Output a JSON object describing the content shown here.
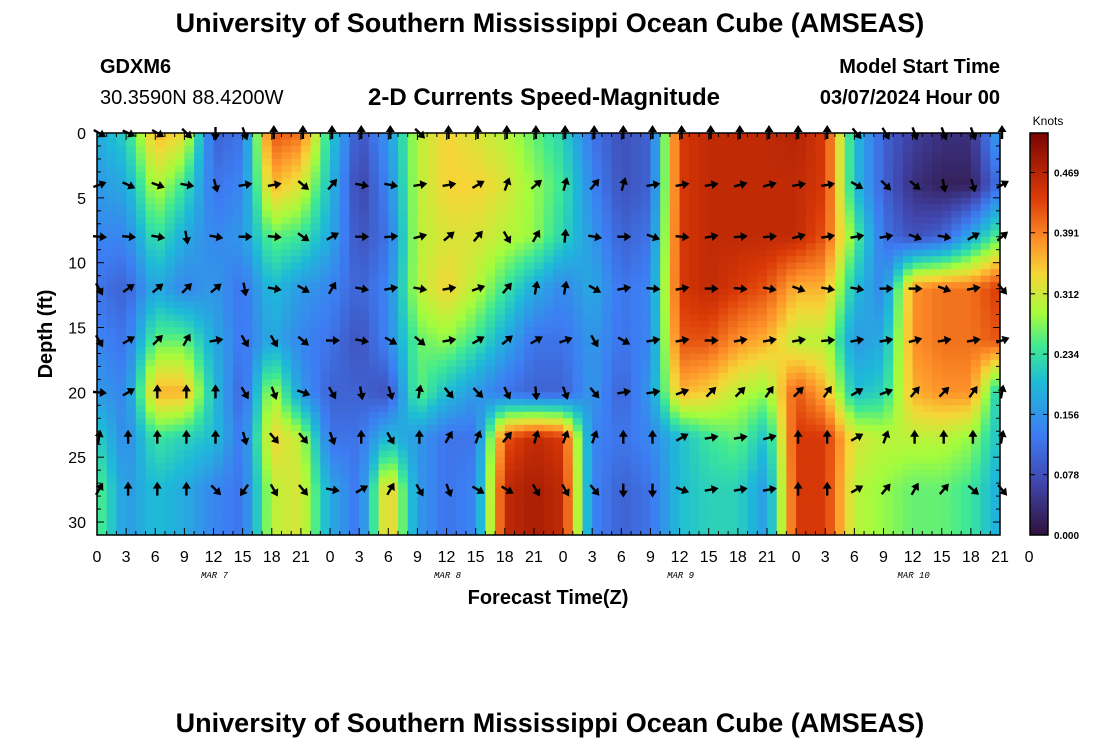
{
  "header": {
    "title": "University of Southern Mississippi Ocean Cube (AMSEAS)",
    "station": "GDXM6",
    "coords": "30.3590N  88.4200W",
    "subtitle": "2-D Currents Speed-Magnitude",
    "model_start_label": "Model Start Time",
    "model_start_value": "03/07/2024 Hour 00"
  },
  "footer": {
    "title": "University of Southern Mississippi Ocean Cube (AMSEAS)"
  },
  "chart_data": {
    "type": "heatmap",
    "title": "2-D Currents Speed-Magnitude",
    "xlabel": "Forecast Time(Z)",
    "ylabel": "Depth (ft)",
    "xlim": [
      0,
      93
    ],
    "ylim": [
      0,
      31
    ],
    "x_tick_labels": [
      "0",
      "3",
      "6",
      "9",
      "12",
      "15",
      "18",
      "21",
      "0",
      "3",
      "6",
      "9",
      "12",
      "15",
      "18",
      "21",
      "0",
      "3",
      "6",
      "9",
      "12",
      "15",
      "18",
      "21",
      "0",
      "3",
      "6",
      "9",
      "12",
      "15",
      "18",
      "21",
      "0"
    ],
    "y_tick_values": [
      0,
      5,
      10,
      15,
      20,
      25,
      30
    ],
    "y_tick_labels": [
      "0",
      "5",
      "10",
      "15",
      "20",
      "25",
      "30"
    ],
    "date_labels": [
      {
        "label": "MAR 7",
        "hour": 12
      },
      {
        "label": "MAR 8",
        "hour": 36
      },
      {
        "label": "MAR 9",
        "hour": 60
      },
      {
        "label": "MAR 10",
        "hour": 84
      }
    ],
    "colorbar": {
      "unit": "Knots",
      "min": 0.0,
      "max": 0.52,
      "ticks": [
        "0.000",
        "0.078",
        "0.156",
        "0.234",
        "0.312",
        "0.391",
        "0.469"
      ],
      "tick_values": [
        0.0,
        0.078,
        0.156,
        0.234,
        0.312,
        0.391,
        0.469
      ]
    },
    "depths_ft": [
      0,
      4,
      8,
      12,
      16,
      20,
      23.5,
      27.5
    ],
    "hours": [
      0,
      3,
      6,
      9,
      12,
      15,
      18,
      21,
      24,
      27,
      30,
      33,
      36,
      39,
      42,
      45,
      48,
      51,
      54,
      57,
      60,
      63,
      66,
      69,
      72,
      75,
      78,
      81,
      84,
      87,
      90,
      93
    ],
    "speed_knots": [
      [
        0.18,
        0.22,
        0.36,
        0.33,
        0.1,
        0.12,
        0.42,
        0.4,
        0.22,
        0.08,
        0.16,
        0.3,
        0.34,
        0.32,
        0.3,
        0.26,
        0.22,
        0.12,
        0.08,
        0.1,
        0.44,
        0.46,
        0.46,
        0.46,
        0.47,
        0.44,
        0.2,
        0.1,
        0.06,
        0.04,
        0.04,
        0.18
      ],
      [
        0.16,
        0.18,
        0.3,
        0.24,
        0.12,
        0.14,
        0.36,
        0.32,
        0.2,
        0.06,
        0.14,
        0.3,
        0.34,
        0.34,
        0.32,
        0.28,
        0.24,
        0.14,
        0.08,
        0.1,
        0.44,
        0.46,
        0.46,
        0.46,
        0.46,
        0.44,
        0.2,
        0.1,
        0.04,
        0.02,
        0.02,
        0.12
      ],
      [
        0.14,
        0.14,
        0.24,
        0.18,
        0.14,
        0.16,
        0.26,
        0.24,
        0.18,
        0.08,
        0.12,
        0.3,
        0.32,
        0.32,
        0.3,
        0.28,
        0.22,
        0.16,
        0.1,
        0.12,
        0.44,
        0.46,
        0.46,
        0.46,
        0.46,
        0.42,
        0.26,
        0.12,
        0.08,
        0.1,
        0.18,
        0.26
      ],
      [
        0.12,
        0.1,
        0.18,
        0.14,
        0.16,
        0.12,
        0.2,
        0.16,
        0.14,
        0.1,
        0.14,
        0.3,
        0.34,
        0.3,
        0.24,
        0.18,
        0.14,
        0.18,
        0.12,
        0.14,
        0.44,
        0.46,
        0.44,
        0.42,
        0.36,
        0.36,
        0.2,
        0.14,
        0.38,
        0.4,
        0.4,
        0.44
      ],
      [
        0.14,
        0.12,
        0.26,
        0.26,
        0.18,
        0.12,
        0.18,
        0.14,
        0.12,
        0.08,
        0.14,
        0.26,
        0.28,
        0.24,
        0.18,
        0.12,
        0.12,
        0.16,
        0.12,
        0.14,
        0.42,
        0.42,
        0.38,
        0.36,
        0.3,
        0.3,
        0.16,
        0.18,
        0.38,
        0.4,
        0.4,
        0.42
      ],
      [
        0.16,
        0.14,
        0.36,
        0.36,
        0.2,
        0.1,
        0.3,
        0.16,
        0.1,
        0.1,
        0.08,
        0.26,
        0.2,
        0.16,
        0.12,
        0.1,
        0.1,
        0.16,
        0.1,
        0.16,
        0.36,
        0.34,
        0.3,
        0.28,
        0.42,
        0.36,
        0.2,
        0.22,
        0.36,
        0.38,
        0.38,
        0.2
      ],
      [
        0.22,
        0.14,
        0.24,
        0.22,
        0.2,
        0.12,
        0.34,
        0.3,
        0.12,
        0.12,
        0.2,
        0.16,
        0.12,
        0.12,
        0.42,
        0.46,
        0.44,
        0.14,
        0.12,
        0.14,
        0.2,
        0.24,
        0.26,
        0.2,
        0.44,
        0.44,
        0.32,
        0.3,
        0.3,
        0.3,
        0.28,
        0.2
      ],
      [
        0.26,
        0.16,
        0.2,
        0.18,
        0.14,
        0.12,
        0.3,
        0.32,
        0.18,
        0.12,
        0.36,
        0.16,
        0.12,
        0.14,
        0.46,
        0.48,
        0.46,
        0.14,
        0.1,
        0.12,
        0.2,
        0.22,
        0.22,
        0.16,
        0.44,
        0.44,
        0.3,
        0.28,
        0.26,
        0.26,
        0.24,
        0.18
      ]
    ],
    "direction_deg": [
      [
        120,
        115,
        120,
        135,
        180,
        160,
        0,
        0,
        0,
        0,
        0,
        135,
        0,
        0,
        0,
        0,
        0,
        0,
        0,
        0,
        0,
        0,
        0,
        0,
        0,
        0,
        140,
        150,
        160,
        160,
        160,
        0
      ],
      [
        70,
        115,
        110,
        100,
        165,
        80,
        80,
        130,
        40,
        100,
        100,
        80,
        80,
        60,
        20,
        50,
        15,
        40,
        15,
        80,
        80,
        80,
        75,
        75,
        80,
        80,
        120,
        135,
        130,
        170,
        165,
        60
      ],
      [
        95,
        95,
        100,
        170,
        100,
        90,
        95,
        125,
        60,
        90,
        85,
        75,
        50,
        40,
        150,
        30,
        5,
        100,
        90,
        110,
        95,
        80,
        85,
        85,
        75,
        80,
        80,
        80,
        110,
        100,
        60,
        50
      ],
      [
        150,
        55,
        50,
        45,
        50,
        170,
        100,
        120,
        30,
        100,
        80,
        100,
        80,
        70,
        40,
        10,
        10,
        120,
        80,
        95,
        80,
        90,
        95,
        100,
        110,
        100,
        100,
        90,
        90,
        110,
        80,
        140
      ],
      [
        150,
        60,
        45,
        30,
        80,
        150,
        150,
        130,
        90,
        100,
        120,
        130,
        80,
        60,
        50,
        60,
        70,
        150,
        120,
        80,
        80,
        90,
        80,
        80,
        80,
        85,
        80,
        80,
        75,
        80,
        80,
        70
      ],
      [
        95,
        60,
        0,
        0,
        0,
        150,
        160,
        110,
        150,
        170,
        165,
        10,
        140,
        135,
        155,
        175,
        160,
        140,
        80,
        80,
        70,
        45,
        45,
        35,
        45,
        35,
        60,
        70,
        40,
        45,
        35,
        10
      ],
      [
        10,
        0,
        0,
        0,
        0,
        165,
        140,
        140,
        160,
        0,
        150,
        0,
        30,
        20,
        40,
        15,
        20,
        20,
        0,
        0,
        60,
        80,
        80,
        75,
        0,
        0,
        60,
        20,
        0,
        0,
        0,
        10
      ],
      [
        30,
        0,
        0,
        0,
        135,
        215,
        150,
        140,
        100,
        60,
        30,
        150,
        160,
        120,
        120,
        150,
        150,
        140,
        180,
        180,
        110,
        80,
        80,
        80,
        0,
        0,
        60,
        40,
        30,
        40,
        130,
        140
      ]
    ]
  }
}
